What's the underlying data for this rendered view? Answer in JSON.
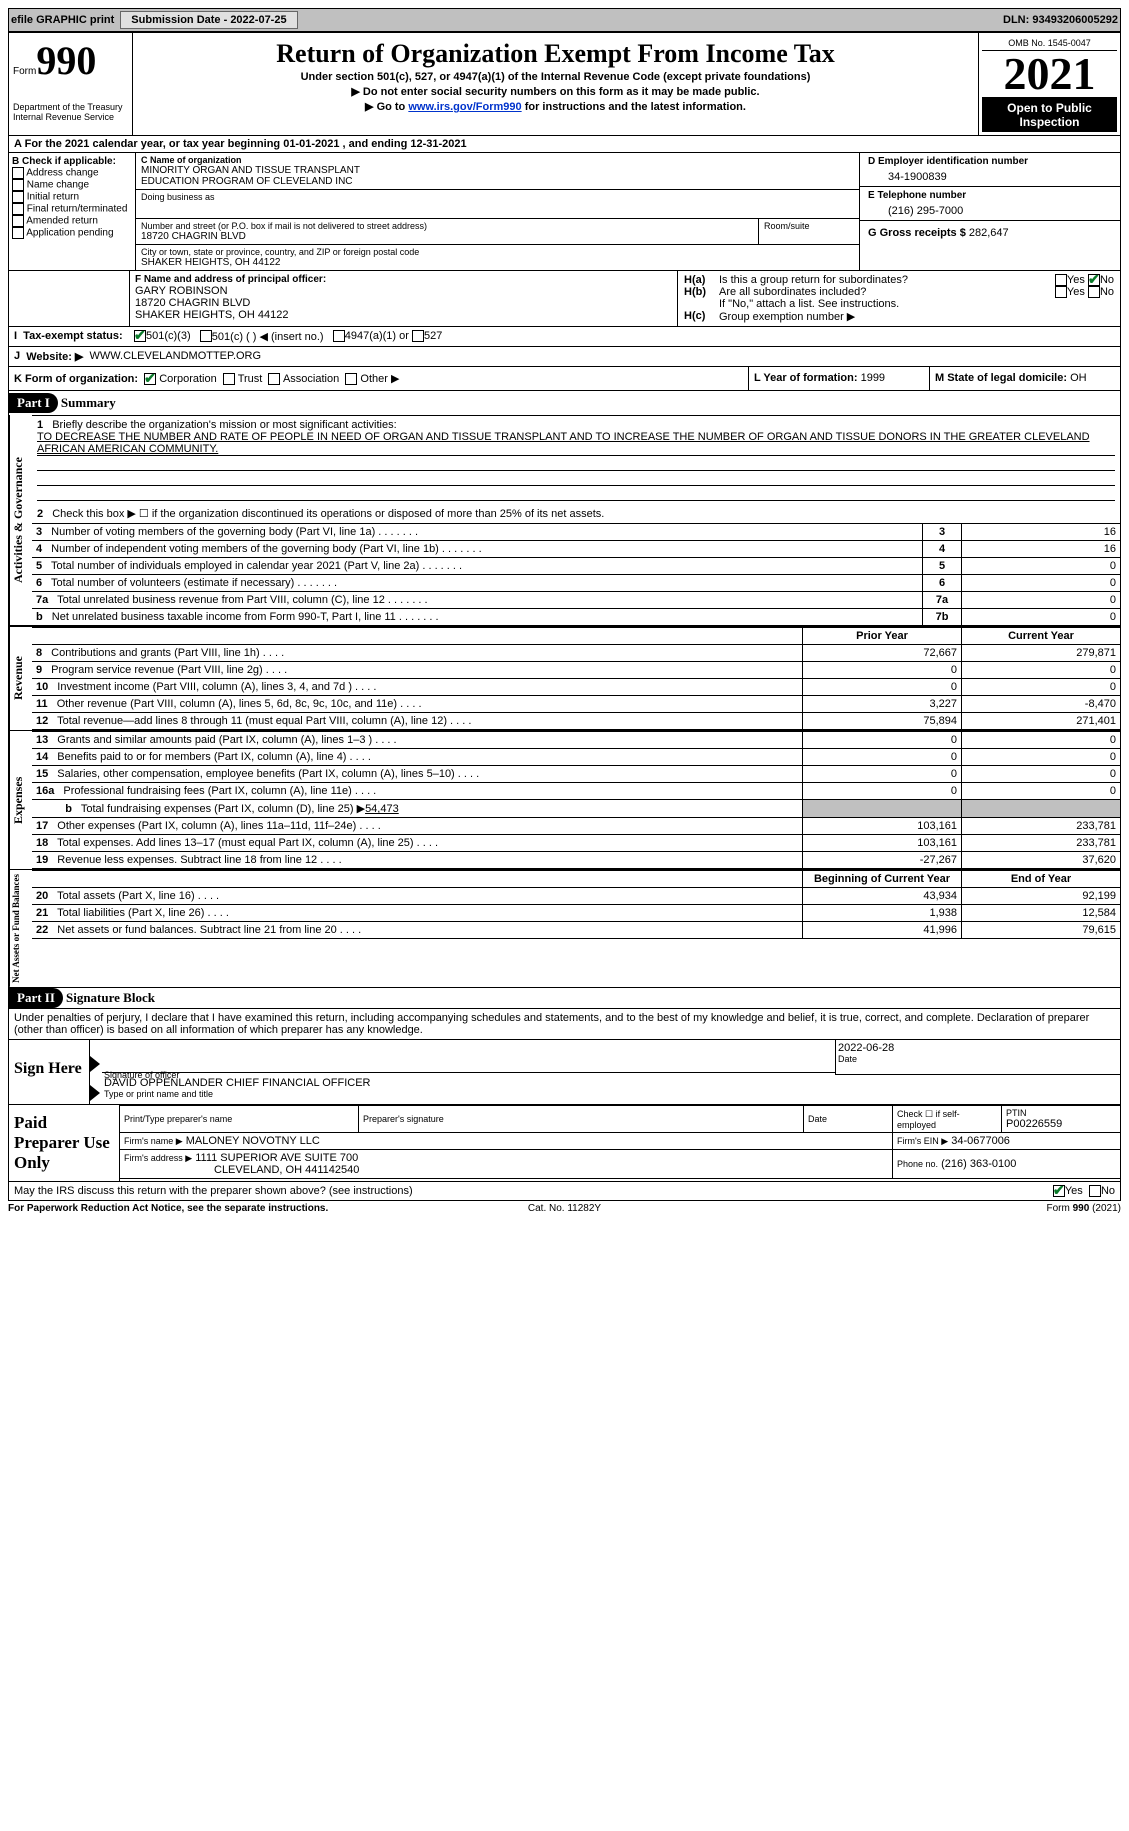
{
  "topbar": {
    "efile": "efile GRAPHIC print",
    "submission_label": "Submission Date - 2022-07-25",
    "dln_label": "DLN: 93493206005292"
  },
  "header": {
    "form_label": "Form",
    "form_number": "990",
    "dept": "Department of the Treasury\nInternal Revenue Service",
    "title": "Return of Organization Exempt From Income Tax",
    "subtitle1": "Under section 501(c), 527, or 4947(a)(1) of the Internal Revenue Code (except private foundations)",
    "subtitle2": "▶ Do not enter social security numbers on this form as it may be made public.",
    "subtitle3_pre": "▶ Go to ",
    "subtitle3_link": "www.irs.gov/Form990",
    "subtitle3_post": " for instructions and the latest information.",
    "omb": "OMB No. 1545-0047",
    "year": "2021",
    "open": "Open to Public Inspection"
  },
  "periodA": "For the 2021 calendar year, or tax year beginning 01-01-2021    , and ending 12-31-2021",
  "boxB": {
    "label": "B Check if applicable:",
    "items": [
      "Address change",
      "Name change",
      "Initial return",
      "Final return/terminated",
      "Amended return",
      "Application pending"
    ]
  },
  "boxC": {
    "label_name": "C Name of organization",
    "name": "MINORITY ORGAN AND TISSUE TRANSPLANT\nEDUCATION PROGRAM OF CLEVELAND INC",
    "dba_label": "Doing business as",
    "street_label": "Number and street (or P.O. box if mail is not delivered to street address)",
    "room_label": "Room/suite",
    "street": "18720 CHAGRIN BLVD",
    "city_label": "City or town, state or province, country, and ZIP or foreign postal code",
    "city": "SHAKER HEIGHTS, OH  44122"
  },
  "boxD": {
    "label": "D Employer identification number",
    "value": "34-1900839"
  },
  "boxE": {
    "label": "E Telephone number",
    "value": "(216) 295-7000"
  },
  "boxG": {
    "label": "G Gross receipts $",
    "value": "282,647"
  },
  "boxF": {
    "label": "F Name and address of principal officer:",
    "name": "GARY ROBINSON",
    "street": "18720 CHAGRIN BLVD",
    "city": "SHAKER HEIGHTS, OH  44122"
  },
  "boxH": {
    "a": "Is this a group return for subordinates?",
    "b": "Are all subordinates included?",
    "b_note": "If \"No,\" attach a list. See instructions.",
    "c": "Group exemption number ▶",
    "yes": "Yes",
    "no": "No"
  },
  "taxI": {
    "label": "Tax-exempt status:",
    "c3": "501(c)(3)",
    "c": "501(c) (   ) ◀ (insert no.)",
    "a1": "4947(a)(1) or",
    "527": "527"
  },
  "website": {
    "label": "Website: ▶",
    "value": "WWW.CLEVELANDMOTTEP.ORG"
  },
  "boxK": {
    "label": "K Form of organization:",
    "corp": "Corporation",
    "trust": "Trust",
    "assoc": "Association",
    "other": "Other ▶"
  },
  "boxL": {
    "label": "L Year of formation:",
    "value": "1999"
  },
  "boxM": {
    "label": "M State of legal domicile:",
    "value": "OH"
  },
  "part1": {
    "hdr": "Part I",
    "title": "Summary",
    "l1_pre": "Briefly describe the organization's mission or most significant activities:",
    "l1_text": "TO DECREASE THE NUMBER AND RATE OF PEOPLE IN NEED OF ORGAN AND TISSUE TRANSPLANT AND TO INCREASE THE NUMBER OF ORGAN AND TISSUE DONORS IN THE GREATER CLEVELAND AFRICAN AMERICAN COMMUNITY.",
    "l2": "Check this box ▶ ☐  if the organization discontinued its operations or disposed of more than 25% of its net assets.",
    "lines": [
      {
        "no": "3",
        "text": "Number of voting members of the governing body (Part VI, line 1a)",
        "box": "3",
        "val": "16"
      },
      {
        "no": "4",
        "text": "Number of independent voting members of the governing body (Part VI, line 1b)",
        "box": "4",
        "val": "16"
      },
      {
        "no": "5",
        "text": "Total number of individuals employed in calendar year 2021 (Part V, line 2a)",
        "box": "5",
        "val": "0"
      },
      {
        "no": "6",
        "text": "Total number of volunteers (estimate if necessary)",
        "box": "6",
        "val": "0"
      },
      {
        "no": "7a",
        "text": "Total unrelated business revenue from Part VIII, column (C), line 12",
        "box": "7a",
        "val": "0"
      },
      {
        "no": "b",
        "text": "Net unrelated business taxable income from Form 990-T, Part I, line 11",
        "box": "7b",
        "val": "0"
      }
    ],
    "prior": "Prior Year",
    "current": "Current Year",
    "revenue": [
      {
        "no": "8",
        "text": "Contributions and grants (Part VIII, line 1h)",
        "p": "72,667",
        "c": "279,871"
      },
      {
        "no": "9",
        "text": "Program service revenue (Part VIII, line 2g)",
        "p": "0",
        "c": "0"
      },
      {
        "no": "10",
        "text": "Investment income (Part VIII, column (A), lines 3, 4, and 7d )",
        "p": "0",
        "c": "0"
      },
      {
        "no": "11",
        "text": "Other revenue (Part VIII, column (A), lines 5, 6d, 8c, 9c, 10c, and 11e)",
        "p": "3,227",
        "c": "-8,470"
      },
      {
        "no": "12",
        "text": "Total revenue—add lines 8 through 11 (must equal Part VIII, column (A), line 12)",
        "p": "75,894",
        "c": "271,401"
      }
    ],
    "expenses": [
      {
        "no": "13",
        "text": "Grants and similar amounts paid (Part IX, column (A), lines 1–3 )",
        "p": "0",
        "c": "0"
      },
      {
        "no": "14",
        "text": "Benefits paid to or for members (Part IX, column (A), line 4)",
        "p": "0",
        "c": "0"
      },
      {
        "no": "15",
        "text": "Salaries, other compensation, employee benefits (Part IX, column (A), lines 5–10)",
        "p": "0",
        "c": "0"
      },
      {
        "no": "16a",
        "text": "Professional fundraising fees (Part IX, column (A), line 11e)",
        "p": "0",
        "c": "0"
      }
    ],
    "l16b_pre": "Total fundraising expenses (Part IX, column (D), line 25) ▶",
    "l16b_val": "54,473",
    "expenses2": [
      {
        "no": "17",
        "text": "Other expenses (Part IX, column (A), lines 11a–11d, 11f–24e)",
        "p": "103,161",
        "c": "233,781"
      },
      {
        "no": "18",
        "text": "Total expenses. Add lines 13–17 (must equal Part IX, column (A), line 25)",
        "p": "103,161",
        "c": "233,781"
      },
      {
        "no": "19",
        "text": "Revenue less expenses. Subtract line 18 from line 12",
        "p": "-27,267",
        "c": "37,620"
      }
    ],
    "begin": "Beginning of Current Year",
    "end": "End of Year",
    "netassets": [
      {
        "no": "20",
        "text": "Total assets (Part X, line 16)",
        "p": "43,934",
        "c": "92,199"
      },
      {
        "no": "21",
        "text": "Total liabilities (Part X, line 26)",
        "p": "1,938",
        "c": "12,584"
      },
      {
        "no": "22",
        "text": "Net assets or fund balances. Subtract line 21 from line 20",
        "p": "41,996",
        "c": "79,615"
      }
    ],
    "side_ag": "Activities & Governance",
    "side_rev": "Revenue",
    "side_exp": "Expenses",
    "side_na": "Net Assets or Fund Balances"
  },
  "part2": {
    "hdr": "Part II",
    "title": "Signature Block",
    "penalties": "Under penalties of perjury, I declare that I have examined this return, including accompanying schedules and statements, and to the best of my knowledge and belief, it is true, correct, and complete. Declaration of preparer (other than officer) is based on all information of which preparer has any knowledge.",
    "signhere": "Sign Here",
    "sig_label": "Signature of officer",
    "date_label": "Date",
    "date_val": "2022-06-28",
    "officer": "DAVID OPPENLANDER  CHIEF FINANCIAL OFFICER",
    "officer_label": "Type or print name and title",
    "paid": "Paid Preparer Use Only",
    "pp_name_label": "Print/Type preparer's name",
    "pp_sig_label": "Preparer's signature",
    "pp_date_label": "Date",
    "pp_check": "Check ☐ if self-employed",
    "ptin_label": "PTIN",
    "ptin": "P00226559",
    "firm_name_label": "Firm's name    ▶",
    "firm_name": "MALONEY NOVOTNY LLC",
    "firm_ein_label": "Firm's EIN ▶",
    "firm_ein": "34-0677006",
    "firm_addr_label": "Firm's address ▶",
    "firm_addr": "1111 SUPERIOR AVE SUITE 700",
    "firm_city": "CLEVELAND, OH  441142540",
    "phone_label": "Phone no.",
    "phone": "(216) 363-0100",
    "discuss": "May the IRS discuss this return with the preparer shown above? (see instructions)",
    "yes": "Yes",
    "no": "No"
  },
  "footer": {
    "left": "For Paperwork Reduction Act Notice, see the separate instructions.",
    "mid": "Cat. No. 11282Y",
    "right": "Form 990 (2021)"
  }
}
